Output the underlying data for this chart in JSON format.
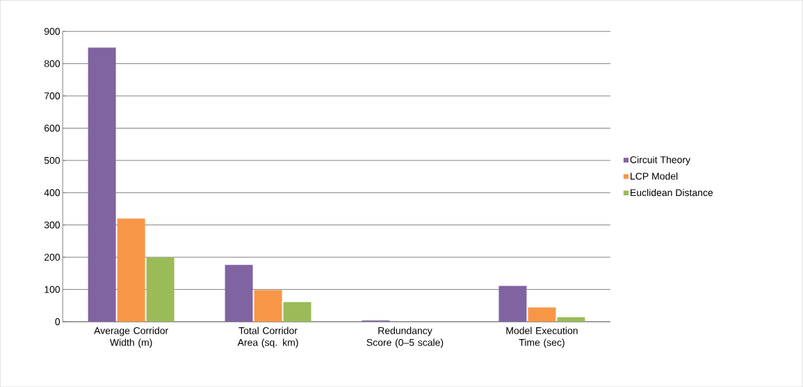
{
  "chart_data": {
    "type": "bar",
    "categories": [
      "Average Corridor Width (m)",
      "Total Corridor Area (sq. km)",
      "Redundancy Score (0–5 scale)",
      "Model Execution Time (sec)"
    ],
    "series": [
      {
        "name": "Circuit Theory",
        "color": "#8064a2",
        "values": [
          850,
          176,
          4,
          111
        ]
      },
      {
        "name": "LCP Model",
        "color": "#f79646",
        "values": [
          320,
          98,
          null,
          44
        ]
      },
      {
        "name": "Euclidean Distance",
        "color": "#9bbb59",
        "values": [
          200,
          61,
          null,
          14
        ]
      }
    ],
    "ylim": [
      0,
      900
    ],
    "yticks": [
      0,
      100,
      200,
      300,
      400,
      500,
      600,
      700,
      800,
      900
    ],
    "grid": "y",
    "legend": "right"
  }
}
